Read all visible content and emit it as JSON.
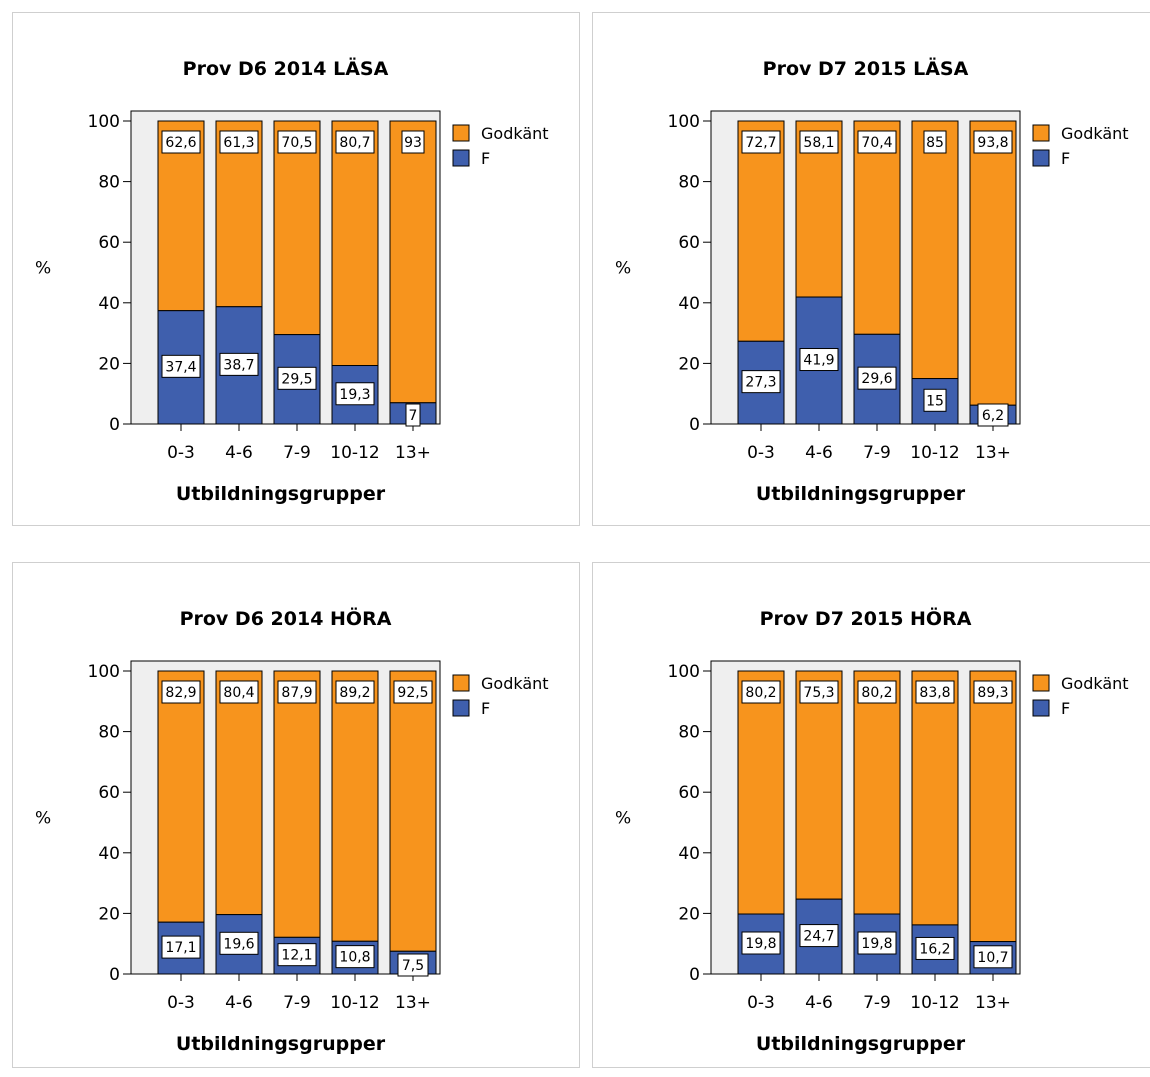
{
  "colors": {
    "godkant": "#f7941d",
    "f": "#3f5fad",
    "plot_bg": "#efefef"
  },
  "chart_data": [
    {
      "type": "bar",
      "stacked": true,
      "title": "Prov D6 2014 LÄSA",
      "xlabel": "Utbildningsgrupper",
      "ylabel": "%",
      "ylim": [
        0,
        100
      ],
      "yticks": [
        "0",
        "20",
        "40",
        "60",
        "80",
        "100"
      ],
      "categories": [
        "0-3",
        "4-6",
        "7-9",
        "10-12",
        "13+"
      ],
      "series": [
        {
          "name": "F",
          "values": [
            37.4,
            38.7,
            29.5,
            19.3,
            7
          ],
          "labels": [
            "37,4",
            "38,7",
            "29,5",
            "19,3",
            "7"
          ]
        },
        {
          "name": "Godkänt",
          "values": [
            62.6,
            61.3,
            70.5,
            80.7,
            93
          ],
          "labels": [
            "62,6",
            "61,3",
            "70,5",
            "80,7",
            "93"
          ]
        }
      ],
      "legend": [
        "Godkänt",
        "F"
      ],
      "legend_position": "right"
    },
    {
      "type": "bar",
      "stacked": true,
      "title": "Prov D7 2015 LÄSA",
      "xlabel": "Utbildningsgrupper",
      "ylabel": "%",
      "ylim": [
        0,
        100
      ],
      "yticks": [
        "0",
        "20",
        "40",
        "60",
        "80",
        "100"
      ],
      "categories": [
        "0-3",
        "4-6",
        "7-9",
        "10-12",
        "13+"
      ],
      "series": [
        {
          "name": "F",
          "values": [
            27.3,
            41.9,
            29.6,
            15,
            6.2
          ],
          "labels": [
            "27,3",
            "41,9",
            "29,6",
            "15",
            "6,2"
          ]
        },
        {
          "name": "Godkänt",
          "values": [
            72.7,
            58.1,
            70.4,
            85,
            93.8
          ],
          "labels": [
            "72,7",
            "58,1",
            "70,4",
            "85",
            "93,8"
          ]
        }
      ],
      "legend": [
        "Godkänt",
        "F"
      ],
      "legend_position": "right"
    },
    {
      "type": "bar",
      "stacked": true,
      "title": "Prov D6 2014 HÖRA",
      "xlabel": "Utbildningsgrupper",
      "ylabel": "%",
      "ylim": [
        0,
        100
      ],
      "yticks": [
        "0",
        "20",
        "40",
        "60",
        "80",
        "100"
      ],
      "categories": [
        "0-3",
        "4-6",
        "7-9",
        "10-12",
        "13+"
      ],
      "series": [
        {
          "name": "F",
          "values": [
            17.1,
            19.6,
            12.1,
            10.8,
            7.5
          ],
          "labels": [
            "17,1",
            "19,6",
            "12,1",
            "10,8",
            "7,5"
          ]
        },
        {
          "name": "Godkänt",
          "values": [
            82.9,
            80.4,
            87.9,
            89.2,
            92.5
          ],
          "labels": [
            "82,9",
            "80,4",
            "87,9",
            "89,2",
            "92,5"
          ]
        }
      ],
      "legend": [
        "Godkänt",
        "F"
      ],
      "legend_position": "right"
    },
    {
      "type": "bar",
      "stacked": true,
      "title": "Prov D7 2015 HÖRA",
      "xlabel": "Utbildningsgrupper",
      "ylabel": "%",
      "ylim": [
        0,
        100
      ],
      "yticks": [
        "0",
        "20",
        "40",
        "60",
        "80",
        "100"
      ],
      "categories": [
        "0-3",
        "4-6",
        "7-9",
        "10-12",
        "13+"
      ],
      "series": [
        {
          "name": "F",
          "values": [
            19.8,
            24.7,
            19.8,
            16.2,
            10.7
          ],
          "labels": [
            "19,8",
            "24,7",
            "19,8",
            "16,2",
            "10,7"
          ]
        },
        {
          "name": "Godkänt",
          "values": [
            80.2,
            75.3,
            80.2,
            83.8,
            89.3
          ],
          "labels": [
            "80,2",
            "75,3",
            "80,2",
            "83,8",
            "89,3"
          ]
        }
      ],
      "legend": [
        "Godkänt",
        "F"
      ],
      "legend_position": "right"
    }
  ]
}
